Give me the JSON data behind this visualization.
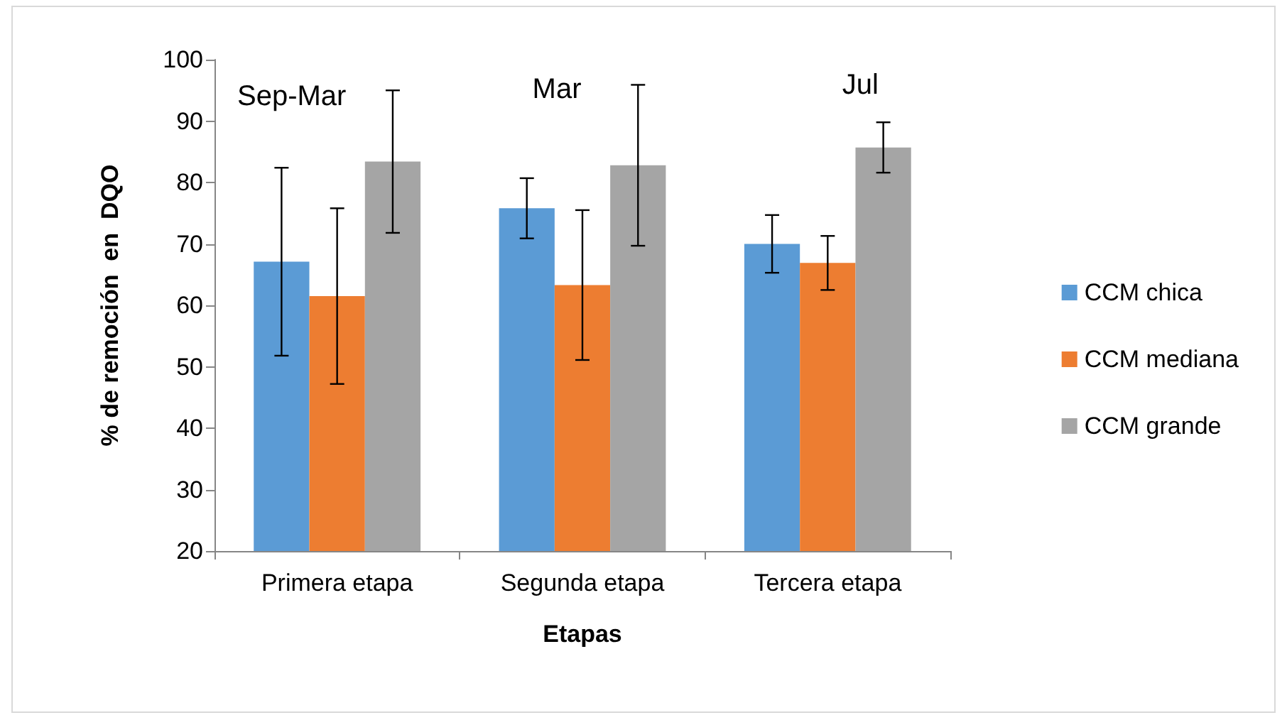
{
  "chart_data": {
    "type": "bar",
    "xlabel": "Etapas",
    "ylabel": "% de remoción  en  DQO",
    "categories": [
      "Primera etapa",
      "Segunda etapa",
      "Tercera etapa"
    ],
    "series": [
      {
        "name": "CCM chica",
        "color": "#5b9bd5",
        "values": [
          67.1,
          75.8,
          70.0
        ],
        "errors": [
          15.3,
          4.9,
          4.7
        ]
      },
      {
        "name": "CCM mediana",
        "color": "#ed7d31",
        "values": [
          61.5,
          63.3,
          66.9
        ],
        "errors": [
          14.3,
          12.2,
          4.4
        ]
      },
      {
        "name": "CCM grande",
        "color": "#a5a5a5",
        "values": [
          83.4,
          82.8,
          85.7
        ],
        "errors": [
          11.6,
          13.1,
          4.1
        ]
      }
    ],
    "ylim": [
      20,
      100
    ],
    "yticks": [
      20,
      30,
      40,
      50,
      60,
      70,
      80,
      90,
      100
    ],
    "grid": false,
    "legend": "right",
    "annotations": [
      "Sep-Mar",
      "Mar",
      "Jul"
    ]
  }
}
